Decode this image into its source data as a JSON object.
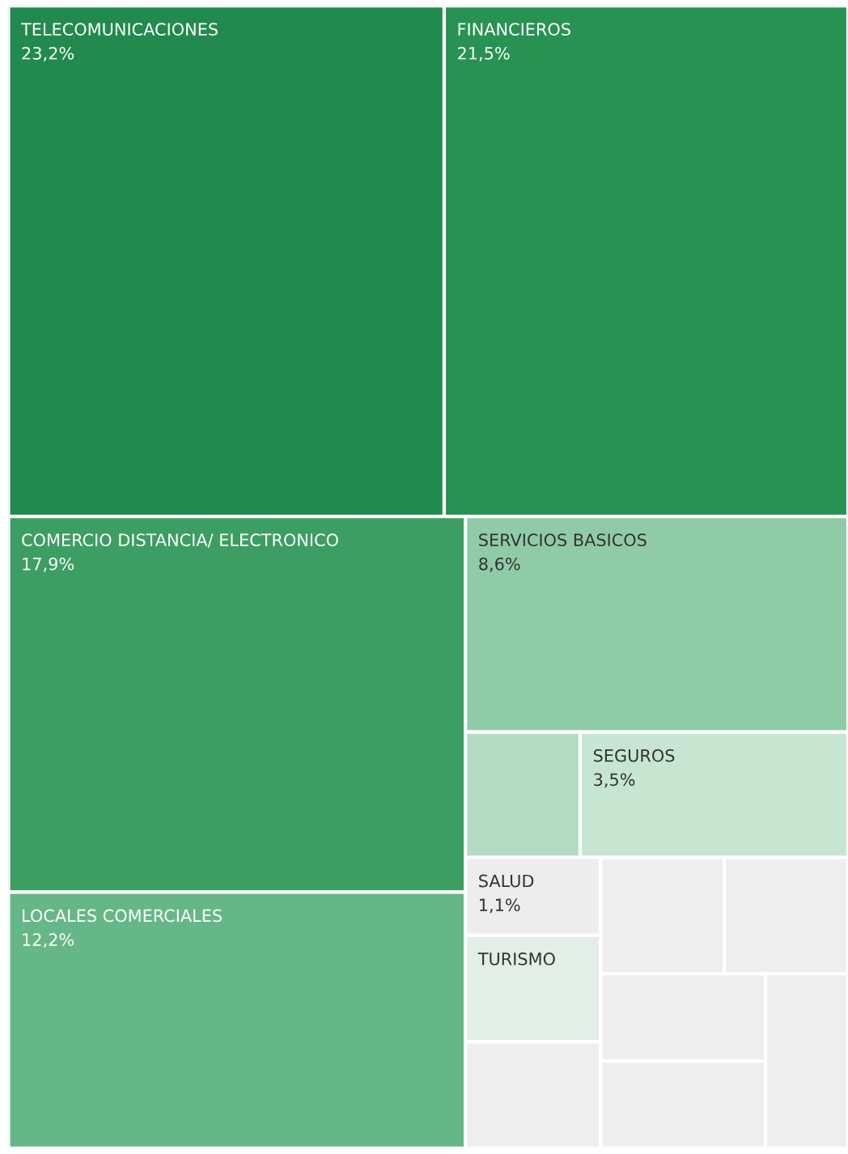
{
  "chart_data": {
    "type": "other",
    "categories": [
      "TELECOMUNICACIONES",
      "FINANCIEROS",
      "COMERCIO DISTANCIA/ ELECTRONICO",
      "LOCALES COMERCIALES",
      "SERVICIOS BASICOS",
      null,
      "SEGUROS",
      "SALUD",
      "TURISMO",
      null,
      null,
      null,
      null,
      null,
      null
    ],
    "values": [
      23.2,
      21.5,
      17.9,
      12.2,
      8.6,
      null,
      3.5,
      1.1,
      null,
      null,
      null,
      null,
      null,
      null,
      null
    ],
    "value_labels": [
      "23,2%",
      "21,5%",
      "17,9%",
      "12,2%",
      "8,6%",
      null,
      "3,5%",
      "1,1%",
      null,
      null,
      null,
      null,
      null,
      null,
      null
    ],
    "colors": [
      "#228a4e",
      "#289253",
      "#3c9e63",
      "#66b787",
      "#90cba7",
      "#b3dcc3",
      "#c7e6d2",
      "#ededed",
      "#e2eee6",
      "#eeeeee",
      "#eeeeee",
      "#eeeeee",
      "#eeeeee",
      "#eeeeee",
      "#eeeeee"
    ]
  }
}
